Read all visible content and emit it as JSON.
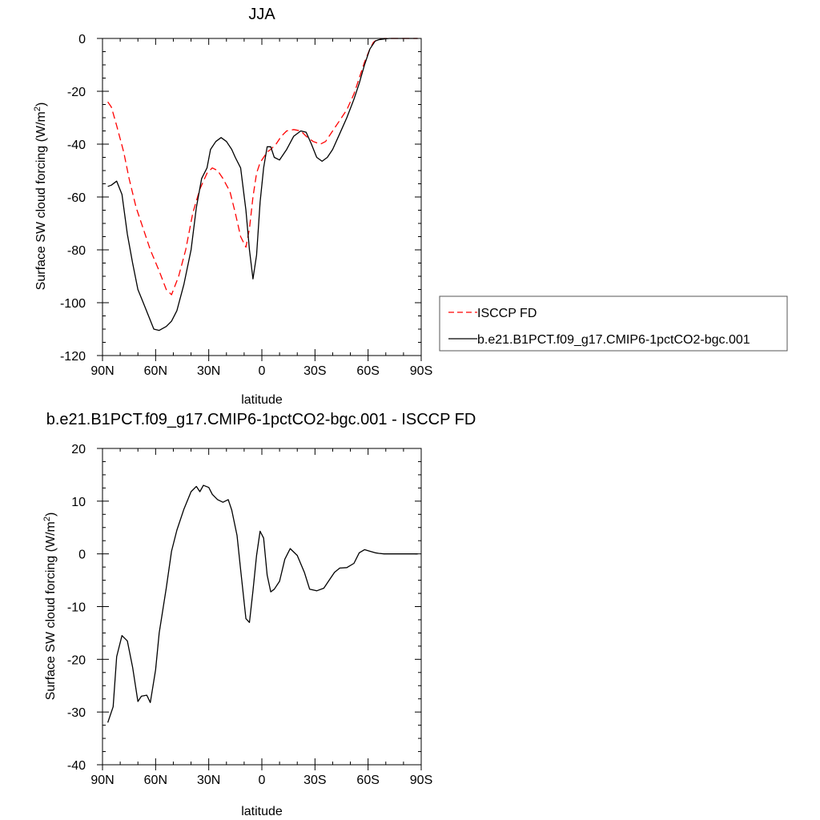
{
  "chart_data": [
    {
      "type": "line",
      "title": "JJA",
      "xlabel": "latitude",
      "ylabel": "Surface SW cloud forcing (W/m²)",
      "ylabel_parts": {
        "main": "Surface SW cloud forcing (W/m",
        "sup": "2",
        "tail": ")"
      },
      "xlim": [
        90,
        -90
      ],
      "ylim": [
        -120,
        0
      ],
      "x_ticks": [
        90,
        60,
        30,
        0,
        -30,
        -60,
        -90
      ],
      "x_tick_labels": [
        "90N",
        "60N",
        "30N",
        "0",
        "30S",
        "60S",
        "90S"
      ],
      "y_ticks": [
        0,
        -20,
        -40,
        -60,
        -80,
        -100,
        -120
      ],
      "y_tick_labels": [
        "0",
        "-20",
        "-40",
        "-60",
        "-80",
        "-100",
        "-120"
      ],
      "legend_position": "right",
      "series": [
        {
          "name": "ISCCP FD",
          "color": "#ff0000",
          "dash": "dashed",
          "x": [
            87,
            85,
            82,
            78,
            75,
            71,
            67,
            63,
            58,
            54,
            51,
            47,
            43,
            39,
            35,
            31,
            28,
            25,
            22,
            18,
            15,
            12,
            9,
            7,
            5,
            3,
            1,
            -1,
            -3,
            -5,
            -8,
            -11,
            -14,
            -18,
            -22,
            -25,
            -29,
            -33,
            -36,
            -40,
            -44,
            -48,
            -52,
            -55,
            -58,
            -61,
            -63,
            -65,
            -67,
            -69,
            -72,
            -76,
            -80,
            -84,
            -88
          ],
          "y": [
            -24,
            -26,
            -33,
            -43,
            -53,
            -64,
            -72,
            -80,
            -88,
            -95,
            -97,
            -90,
            -80,
            -66,
            -57,
            -51,
            -49,
            -50,
            -53,
            -58,
            -66,
            -75,
            -79,
            -72,
            -60,
            -51,
            -47,
            -45,
            -43,
            -42,
            -40,
            -37,
            -35,
            -34.5,
            -35,
            -37,
            -39,
            -40,
            -39,
            -35,
            -31,
            -27,
            -21,
            -15,
            -9,
            -4,
            -1.5,
            -0.5,
            -0.2,
            0,
            0,
            0,
            0,
            0,
            0
          ]
        },
        {
          "name": "b.e21.B1PCT.f09_g17.CMIP6-1pctCO2-bgc.001",
          "color": "#000000",
          "dash": "solid",
          "x": [
            87,
            85,
            82,
            79,
            76,
            73,
            70,
            67,
            64,
            61,
            58,
            54,
            51,
            48,
            44,
            40,
            37,
            34,
            31,
            29,
            26,
            23,
            20,
            17,
            15,
            12,
            9,
            7,
            5,
            3,
            1,
            -1,
            -3,
            -5,
            -7,
            -10,
            -14,
            -18,
            -22,
            -25,
            -28,
            -31,
            -34,
            -37,
            -40,
            -44,
            -48,
            -52,
            -55,
            -58,
            -61,
            -64,
            -66,
            -69,
            -72,
            -76,
            -80,
            -84,
            -88
          ],
          "y": [
            -56,
            -55.5,
            -54,
            -59,
            -74,
            -85,
            -95,
            -100,
            -105,
            -110,
            -110.5,
            -109,
            -107,
            -103,
            -93,
            -80,
            -64,
            -53,
            -49,
            -42,
            -39,
            -37.5,
            -39,
            -42,
            -45,
            -49,
            -65,
            -80,
            -91,
            -82,
            -62,
            -49,
            -41,
            -41,
            -45,
            -46,
            -42,
            -37,
            -35,
            -35.5,
            -40,
            -45,
            -46.5,
            -45,
            -42,
            -36,
            -30,
            -23,
            -17,
            -10,
            -4,
            -1,
            -0.5,
            -0.2,
            0,
            0,
            0,
            0,
            0
          ]
        }
      ]
    },
    {
      "type": "line",
      "title": "b.e21.B1PCT.f09_g17.CMIP6-1pctCO2-bgc.001 - ISCCP FD",
      "xlabel": "latitude",
      "ylabel": "Surface SW cloud forcing (W/m²)",
      "ylabel_parts": {
        "main": "Surface SW cloud forcing (W/m",
        "sup": "2",
        "tail": ")"
      },
      "xlim": [
        90,
        -90
      ],
      "ylim": [
        -40,
        20
      ],
      "x_ticks": [
        90,
        60,
        30,
        0,
        -30,
        -60,
        -90
      ],
      "x_tick_labels": [
        "90N",
        "60N",
        "30N",
        "0",
        "30S",
        "60S",
        "90S"
      ],
      "y_ticks": [
        20,
        10,
        0,
        -10,
        -20,
        -30,
        -40
      ],
      "y_tick_labels": [
        "20",
        "10",
        "0",
        "-10",
        "-20",
        "-30",
        "-40"
      ],
      "series": [
        {
          "name": "",
          "color": "#000000",
          "dash": "solid",
          "x": [
            87,
            84,
            82,
            79,
            76,
            73,
            70,
            68,
            65,
            63,
            60,
            58,
            54,
            51,
            48,
            44,
            40,
            37,
            35,
            33,
            30,
            28,
            25,
            22,
            19,
            17,
            14,
            12,
            9,
            7,
            5,
            3,
            1,
            -1,
            -3,
            -5,
            -7,
            -10,
            -13,
            -16,
            -20,
            -24,
            -27,
            -31,
            -35,
            -38,
            -41,
            -44,
            -48,
            -52,
            -55,
            -58,
            -61,
            -64,
            -66,
            -69,
            -72,
            -76,
            -80,
            -84,
            -88
          ],
          "y": [
            -32,
            -29,
            -19.5,
            -15.5,
            -16.5,
            -21.5,
            -28,
            -27,
            -26.8,
            -28.2,
            -22,
            -15,
            -6.5,
            0.5,
            4.5,
            8.5,
            11.8,
            12.8,
            11.8,
            13,
            12.6,
            11.3,
            10.3,
            9.8,
            10.3,
            8.3,
            3.5,
            -3,
            -12.3,
            -13,
            -7,
            -0.3,
            4.3,
            3,
            -4,
            -7.2,
            -6.7,
            -5.2,
            -1,
            1,
            -0.3,
            -3.5,
            -6.7,
            -7,
            -6.5,
            -5,
            -3.5,
            -2.7,
            -2.6,
            -1.8,
            0.2,
            0.8,
            0.5,
            0.2,
            0.1,
            0,
            0,
            0,
            0,
            0,
            0
          ]
        }
      ]
    }
  ]
}
